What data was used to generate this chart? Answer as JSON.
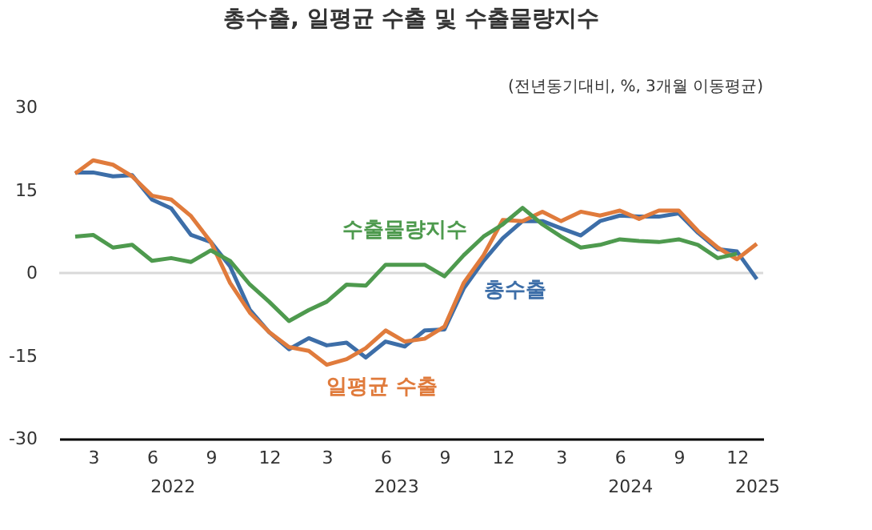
{
  "chart_data": {
    "type": "line",
    "title": "총수출, 일평균 수출 및 수출물량지수",
    "subtitle": "(전년동기대비, %, 3개월 이동평균)",
    "x": [
      "2022-02",
      "2022-03",
      "2022-04",
      "2022-05",
      "2022-06",
      "2022-07",
      "2022-08",
      "2022-09",
      "2022-10",
      "2022-11",
      "2022-12",
      "2023-01",
      "2023-02",
      "2023-03",
      "2023-04",
      "2023-05",
      "2023-06",
      "2023-07",
      "2023-08",
      "2023-09",
      "2023-10",
      "2023-11",
      "2023-12",
      "2024-01",
      "2024-02",
      "2024-03",
      "2024-04",
      "2024-05",
      "2024-06",
      "2024-07",
      "2024-08",
      "2024-09",
      "2024-10",
      "2024-11",
      "2024-12",
      "2025-01"
    ],
    "series": [
      {
        "name": "총수출",
        "color": "#3d6ea8",
        "values": [
          18.2,
          18.2,
          17.5,
          17.7,
          13.3,
          11.7,
          6.9,
          5.6,
          1.2,
          -6.7,
          -10.7,
          -13.8,
          -11.8,
          -13.1,
          -12.6,
          -15.3,
          -12.4,
          -13.3,
          -10.4,
          -10.2,
          -2.8,
          2.2,
          6.3,
          9.4,
          9.4,
          8.1,
          6.8,
          9.4,
          10.4,
          10.2,
          10.2,
          10.8,
          7.3,
          4.3,
          3.9,
          -1.1
        ]
      },
      {
        "name": "일평균 수출",
        "color": "#e07b3c",
        "values": [
          18.0,
          20.4,
          19.6,
          17.5,
          14.0,
          13.3,
          10.3,
          5.6,
          -1.8,
          -7.2,
          -10.7,
          -13.4,
          -14.1,
          -16.6,
          -15.6,
          -13.6,
          -10.4,
          -12.4,
          -11.9,
          -9.7,
          -1.8,
          3.2,
          9.6,
          9.4,
          11.1,
          9.4,
          11.1,
          10.4,
          11.3,
          9.8,
          11.3,
          11.3,
          7.6,
          4.6,
          2.5,
          5.3
        ]
      },
      {
        "name": "수출물량지수",
        "color": "#4e9a4e",
        "values": [
          6.6,
          6.9,
          4.6,
          5.1,
          2.2,
          2.7,
          2.0,
          4.1,
          2.2,
          -2.1,
          -5.2,
          -8.7,
          -6.7,
          -5.2,
          -2.1,
          -2.3,
          1.5,
          1.5,
          1.5,
          -0.6,
          3.2,
          6.6,
          8.8,
          11.8,
          8.8,
          6.6,
          4.6,
          5.1,
          6.1,
          5.8,
          5.6,
          6.1,
          5.1,
          2.7,
          3.5,
          null
        ]
      }
    ],
    "xlim": [
      "2022-01-07",
      "2025-01-11"
    ],
    "xticks": [
      {
        "value": "2022-03",
        "label": "3"
      },
      {
        "value": "2022-06",
        "label": "6"
      },
      {
        "value": "2022-09",
        "label": "9"
      },
      {
        "value": "2022-12",
        "label": "12"
      },
      {
        "value": "2023-03",
        "label": "3"
      },
      {
        "value": "2023-06",
        "label": "6"
      },
      {
        "value": "2023-09",
        "label": "9"
      },
      {
        "value": "2023-12",
        "label": "12"
      },
      {
        "value": "2024-03",
        "label": "3"
      },
      {
        "value": "2024-06",
        "label": "6"
      },
      {
        "value": "2024-09",
        "label": "9"
      },
      {
        "value": "2024-12",
        "label": "12"
      }
    ],
    "annotations": [
      "2022",
      "2023",
      "2024",
      "2025"
    ],
    "ylim": [
      -30,
      30
    ],
    "yticks": [
      -30,
      -15,
      0,
      15,
      30
    ],
    "ref_lines": [
      {
        "axis": "y",
        "value": 0,
        "color": "#d9d9d9"
      }
    ],
    "grid": false,
    "marker": "none",
    "line_style": "solid"
  }
}
